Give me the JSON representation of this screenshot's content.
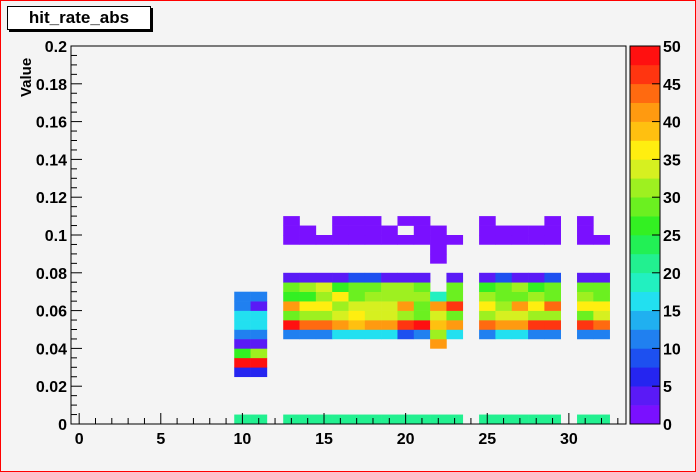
{
  "chart_data": {
    "type": "heatmap",
    "title": "hit_rate_abs",
    "ylabel": "Value",
    "xlabel": "",
    "xlim": [
      -0.5,
      33.5
    ],
    "ylim": [
      0,
      0.2
    ],
    "x_ticks": [
      "0",
      "5",
      "10",
      "15",
      "20",
      "25",
      "30"
    ],
    "y_ticks": [
      "0",
      "0.02",
      "0.04",
      "0.06",
      "0.08",
      "0.1",
      "0.12",
      "0.14",
      "0.16",
      "0.18",
      "0.2"
    ],
    "z_range": [
      0,
      50
    ],
    "colorbar_labels": [
      "0",
      "5",
      "10",
      "15",
      "20",
      "25",
      "30",
      "35",
      "40",
      "45",
      "50"
    ],
    "bin_width_x": 1,
    "bin_width_y": 0.005,
    "palette": [
      "#7a10ff",
      "#5a1af6",
      "#2525f0",
      "#1d50f0",
      "#2080f0",
      "#20b0f0",
      "#22e0f0",
      "#22f0c0",
      "#22f090",
      "#22f055",
      "#33f022",
      "#6bf020",
      "#9ef020",
      "#d6f020",
      "#ffee10",
      "#ffc010",
      "#ff9a10",
      "#ff6a10",
      "#ff3510",
      "#ff1010"
    ],
    "bins": [
      [
        10,
        0.0,
        22
      ],
      [
        11,
        0.0,
        22
      ],
      [
        13,
        0.0,
        22
      ],
      [
        14,
        0.0,
        22
      ],
      [
        15,
        0.0,
        22
      ],
      [
        16,
        0.0,
        22
      ],
      [
        17,
        0.0,
        22
      ],
      [
        18,
        0.0,
        22
      ],
      [
        19,
        0.0,
        22
      ],
      [
        20,
        0.0,
        22
      ],
      [
        21,
        0.0,
        22
      ],
      [
        22,
        0.0,
        22
      ],
      [
        23,
        0.0,
        22
      ],
      [
        25,
        0.0,
        22
      ],
      [
        26,
        0.0,
        22
      ],
      [
        27,
        0.0,
        22
      ],
      [
        28,
        0.0,
        22
      ],
      [
        29,
        0.0,
        22
      ],
      [
        31,
        0.0,
        22
      ],
      [
        32,
        0.0,
        22
      ],
      [
        10,
        0.025,
        5
      ],
      [
        11,
        0.025,
        5
      ],
      [
        10,
        0.03,
        48
      ],
      [
        11,
        0.03,
        48
      ],
      [
        10,
        0.035,
        27
      ],
      [
        11,
        0.035,
        30
      ],
      [
        10,
        0.04,
        4
      ],
      [
        11,
        0.04,
        4
      ],
      [
        22,
        0.04,
        40
      ],
      [
        10,
        0.045,
        12
      ],
      [
        11,
        0.045,
        12
      ],
      [
        13,
        0.045,
        12
      ],
      [
        14,
        0.045,
        12
      ],
      [
        15,
        0.045,
        12
      ],
      [
        16,
        0.045,
        16
      ],
      [
        17,
        0.045,
        16
      ],
      [
        18,
        0.045,
        16
      ],
      [
        19,
        0.045,
        16
      ],
      [
        20,
        0.045,
        8
      ],
      [
        21,
        0.045,
        12
      ],
      [
        22,
        0.045,
        30
      ],
      [
        23,
        0.045,
        16
      ],
      [
        25,
        0.045,
        12
      ],
      [
        26,
        0.045,
        16
      ],
      [
        27,
        0.045,
        16
      ],
      [
        28,
        0.045,
        12
      ],
      [
        29,
        0.045,
        12
      ],
      [
        31,
        0.045,
        12
      ],
      [
        32,
        0.045,
        12
      ],
      [
        10,
        0.05,
        16
      ],
      [
        11,
        0.05,
        16
      ],
      [
        13,
        0.05,
        48
      ],
      [
        14,
        0.05,
        44
      ],
      [
        15,
        0.05,
        44
      ],
      [
        16,
        0.05,
        40
      ],
      [
        17,
        0.05,
        38
      ],
      [
        18,
        0.05,
        42
      ],
      [
        19,
        0.05,
        40
      ],
      [
        20,
        0.05,
        45
      ],
      [
        21,
        0.05,
        48
      ],
      [
        22,
        0.05,
        38
      ],
      [
        23,
        0.05,
        42
      ],
      [
        25,
        0.05,
        44
      ],
      [
        26,
        0.05,
        40
      ],
      [
        27,
        0.05,
        40
      ],
      [
        28,
        0.05,
        46
      ],
      [
        29,
        0.05,
        46
      ],
      [
        31,
        0.05,
        46
      ],
      [
        32,
        0.05,
        44
      ],
      [
        10,
        0.055,
        16
      ],
      [
        11,
        0.055,
        16
      ],
      [
        13,
        0.055,
        28
      ],
      [
        14,
        0.055,
        32
      ],
      [
        15,
        0.055,
        32
      ],
      [
        16,
        0.055,
        34
      ],
      [
        17,
        0.055,
        37
      ],
      [
        18,
        0.055,
        34
      ],
      [
        19,
        0.055,
        34
      ],
      [
        20,
        0.055,
        32
      ],
      [
        21,
        0.055,
        28
      ],
      [
        22,
        0.055,
        34
      ],
      [
        23,
        0.055,
        28
      ],
      [
        25,
        0.055,
        30
      ],
      [
        26,
        0.055,
        34
      ],
      [
        27,
        0.055,
        34
      ],
      [
        28,
        0.055,
        30
      ],
      [
        29,
        0.055,
        32
      ],
      [
        31,
        0.055,
        28
      ],
      [
        32,
        0.055,
        34
      ],
      [
        10,
        0.06,
        12
      ],
      [
        11,
        0.06,
        4
      ],
      [
        13,
        0.06,
        42
      ],
      [
        14,
        0.06,
        37
      ],
      [
        15,
        0.06,
        37
      ],
      [
        16,
        0.06,
        32
      ],
      [
        17,
        0.06,
        34
      ],
      [
        18,
        0.06,
        34
      ],
      [
        19,
        0.06,
        34
      ],
      [
        20,
        0.06,
        40
      ],
      [
        21,
        0.06,
        28
      ],
      [
        22,
        0.06,
        42
      ],
      [
        23,
        0.06,
        46
      ],
      [
        25,
        0.06,
        37
      ],
      [
        26,
        0.06,
        30
      ],
      [
        27,
        0.06,
        42
      ],
      [
        28,
        0.06,
        37
      ],
      [
        29,
        0.06,
        44
      ],
      [
        31,
        0.06,
        37
      ],
      [
        32,
        0.06,
        37
      ],
      [
        10,
        0.065,
        12
      ],
      [
        11,
        0.065,
        12
      ],
      [
        13,
        0.065,
        26
      ],
      [
        14,
        0.065,
        26
      ],
      [
        15,
        0.065,
        32
      ],
      [
        16,
        0.065,
        36
      ],
      [
        17,
        0.065,
        28
      ],
      [
        18,
        0.065,
        30
      ],
      [
        19,
        0.065,
        30
      ],
      [
        20,
        0.065,
        32
      ],
      [
        21,
        0.065,
        30
      ],
      [
        22,
        0.065,
        18
      ],
      [
        23,
        0.065,
        28
      ],
      [
        25,
        0.065,
        30
      ],
      [
        26,
        0.065,
        28
      ],
      [
        27,
        0.065,
        28
      ],
      [
        28,
        0.065,
        32
      ],
      [
        29,
        0.065,
        28
      ],
      [
        31,
        0.065,
        30
      ],
      [
        32,
        0.065,
        28
      ],
      [
        13,
        0.07,
        28
      ],
      [
        14,
        0.07,
        32
      ],
      [
        15,
        0.07,
        34
      ],
      [
        16,
        0.07,
        26
      ],
      [
        17,
        0.07,
        28
      ],
      [
        18,
        0.07,
        28
      ],
      [
        19,
        0.07,
        30
      ],
      [
        20,
        0.07,
        32
      ],
      [
        21,
        0.07,
        28
      ],
      [
        23,
        0.07,
        28
      ],
      [
        25,
        0.07,
        26
      ],
      [
        26,
        0.07,
        28
      ],
      [
        27,
        0.07,
        30
      ],
      [
        28,
        0.07,
        26
      ],
      [
        29,
        0.07,
        28
      ],
      [
        31,
        0.07,
        28
      ],
      [
        32,
        0.07,
        28
      ],
      [
        13,
        0.075,
        4
      ],
      [
        14,
        0.075,
        4
      ],
      [
        15,
        0.075,
        4
      ],
      [
        16,
        0.075,
        4
      ],
      [
        17,
        0.075,
        8
      ],
      [
        18,
        0.075,
        8
      ],
      [
        19,
        0.075,
        4
      ],
      [
        20,
        0.075,
        4
      ],
      [
        21,
        0.075,
        4
      ],
      [
        23,
        0.075,
        4
      ],
      [
        25,
        0.075,
        4
      ],
      [
        26,
        0.075,
        8
      ],
      [
        27,
        0.075,
        4
      ],
      [
        28,
        0.075,
        4
      ],
      [
        29,
        0.075,
        8
      ],
      [
        31,
        0.075,
        4
      ],
      [
        32,
        0.075,
        4
      ],
      [
        22,
        0.085,
        2
      ],
      [
        22,
        0.09,
        2
      ],
      [
        13,
        0.095,
        1
      ],
      [
        14,
        0.095,
        1
      ],
      [
        15,
        0.095,
        1
      ],
      [
        16,
        0.095,
        1
      ],
      [
        17,
        0.095,
        1
      ],
      [
        18,
        0.095,
        1
      ],
      [
        19,
        0.095,
        1
      ],
      [
        20,
        0.095,
        1
      ],
      [
        21,
        0.095,
        1
      ],
      [
        22,
        0.095,
        1
      ],
      [
        23,
        0.095,
        1
      ],
      [
        25,
        0.095,
        1
      ],
      [
        26,
        0.095,
        1
      ],
      [
        27,
        0.095,
        1
      ],
      [
        28,
        0.095,
        1
      ],
      [
        29,
        0.095,
        1
      ],
      [
        31,
        0.095,
        1
      ],
      [
        32,
        0.095,
        1
      ],
      [
        13,
        0.1,
        1
      ],
      [
        14,
        0.1,
        1
      ],
      [
        16,
        0.1,
        1
      ],
      [
        17,
        0.1,
        1
      ],
      [
        18,
        0.1,
        1
      ],
      [
        19,
        0.1,
        1
      ],
      [
        21,
        0.1,
        1
      ],
      [
        22,
        0.1,
        1
      ],
      [
        25,
        0.1,
        1
      ],
      [
        26,
        0.1,
        1
      ],
      [
        27,
        0.1,
        1
      ],
      [
        28,
        0.1,
        1
      ],
      [
        29,
        0.1,
        1
      ],
      [
        31,
        0.1,
        1
      ],
      [
        13,
        0.105,
        1
      ],
      [
        16,
        0.105,
        1
      ],
      [
        17,
        0.105,
        1
      ],
      [
        18,
        0.105,
        1
      ],
      [
        20,
        0.105,
        1
      ],
      [
        21,
        0.105,
        1
      ],
      [
        25,
        0.105,
        1
      ],
      [
        29,
        0.105,
        1
      ],
      [
        31,
        0.105,
        1
      ]
    ]
  }
}
